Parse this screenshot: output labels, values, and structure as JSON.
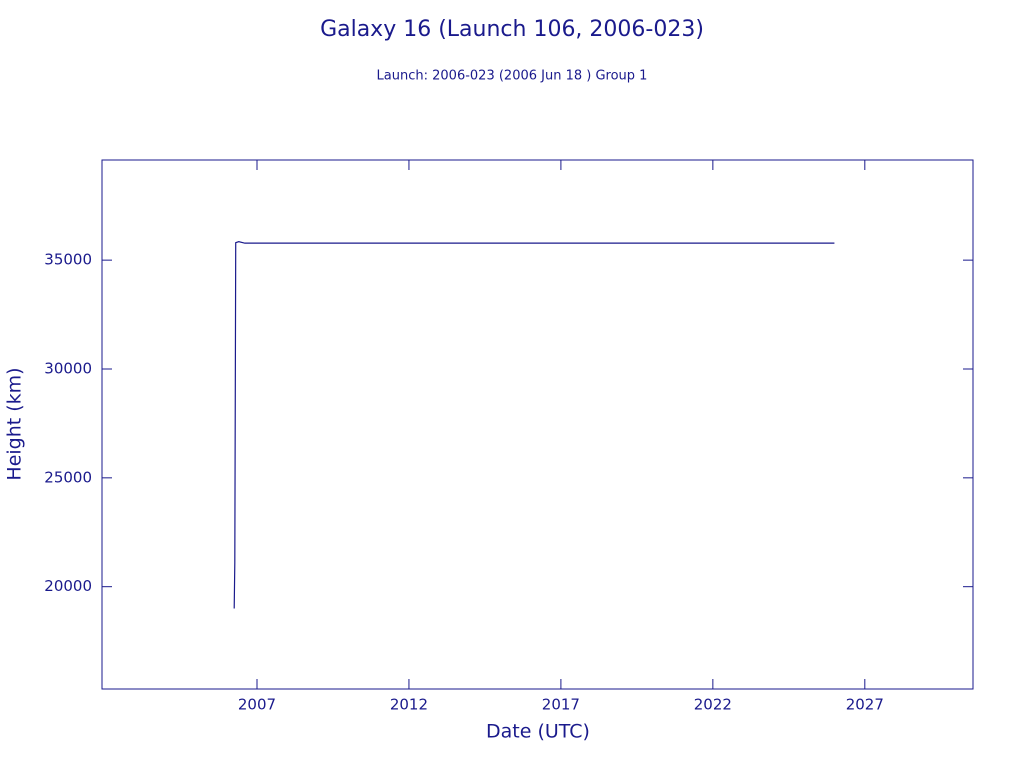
{
  "chart_data": {
    "type": "line",
    "title": "Galaxy 16 (Launch 106, 2006-023)",
    "subtitle": "Launch: 2006-023  (2006 Jun 18 )  Group 1",
    "x_label": "Date (UTC)",
    "y_label": "Height (km)",
    "x": [
      2006.25,
      2006.27,
      2006.3,
      2006.4,
      2006.6,
      2026.0
    ],
    "values": [
      19000,
      21100,
      35800,
      35850,
      35780,
      35780
    ],
    "color": "#1a1a8c",
    "xlim": [
      2001.9,
      2030.56
    ],
    "xticks": [
      2007,
      2012,
      2017,
      2022,
      2027
    ],
    "ylim": [
      15300,
      39600
    ],
    "yticks": [
      20000,
      25000,
      30000,
      35000
    ]
  }
}
